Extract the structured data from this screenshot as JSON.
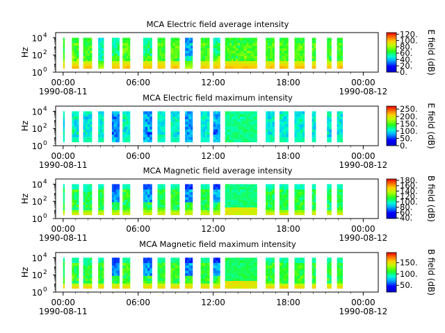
{
  "chart_data": [
    {
      "type": "heatmap",
      "title": "MCA  Electric field average intensity",
      "ylabel": "Hz",
      "y_scale": "log",
      "y_ticks": [
        {
          "base": "10",
          "exp": "0"
        },
        {
          "base": "10",
          "exp": "2"
        },
        {
          "base": "10",
          "exp": "4"
        }
      ],
      "x_ticks": [
        "00:00",
        "06:00",
        "12:00",
        "18:00",
        "00:00"
      ],
      "x_dates": [
        "1990-08-11",
        "1990-08-12"
      ],
      "colorbar_label": "E field (dB)",
      "colorbar_ticks": [
        "0.",
        "20.",
        "40.",
        "60.",
        "80.",
        "100.",
        "120."
      ],
      "colorbar_range": [
        0,
        125
      ],
      "profile": "e_avg"
    },
    {
      "type": "heatmap",
      "title": "MCA  Electric field maximum intensity",
      "ylabel": "Hz",
      "y_scale": "log",
      "y_ticks": [
        {
          "base": "10",
          "exp": "0"
        },
        {
          "base": "10",
          "exp": "2"
        },
        {
          "base": "10",
          "exp": "4"
        }
      ],
      "x_ticks": [
        "00:00",
        "06:00",
        "12:00",
        "18:00",
        "00:00"
      ],
      "x_dates": [
        "1990-08-11",
        "1990-08-12"
      ],
      "colorbar_label": "E field (dB)",
      "colorbar_ticks": [
        "0.",
        "50.",
        "100.",
        "150.",
        "200.",
        "250."
      ],
      "colorbar_range": [
        0,
        270
      ],
      "profile": "e_max"
    },
    {
      "type": "heatmap",
      "title": "MCA  Magnetic field average intensity",
      "ylabel": "Hz",
      "y_scale": "log",
      "y_ticks": [
        {
          "base": "10",
          "exp": "0"
        },
        {
          "base": "10",
          "exp": "2"
        },
        {
          "base": "10",
          "exp": "4"
        }
      ],
      "x_ticks": [
        "00:00",
        "06:00",
        "12:00",
        "18:00",
        "00:00"
      ],
      "x_dates": [
        "1990-08-11",
        "1990-08-12"
      ],
      "colorbar_label": "B field (dB)",
      "colorbar_ticks": [
        "40.",
        "60.",
        "80.",
        "100.",
        "120.",
        "140.",
        "160.",
        "180."
      ],
      "colorbar_range": [
        38,
        185
      ],
      "profile": "b_avg"
    },
    {
      "type": "heatmap",
      "title": "MCA  Magnetic field maximum intensity",
      "ylabel": "Hz",
      "y_scale": "log",
      "y_ticks": [
        {
          "base": "10",
          "exp": "0"
        },
        {
          "base": "10",
          "exp": "2"
        },
        {
          "base": "10",
          "exp": "4"
        }
      ],
      "x_ticks": [
        "00:00",
        "06:00",
        "12:00",
        "18:00",
        "00:00"
      ],
      "x_dates": [
        "1990-08-11",
        "1990-08-12"
      ],
      "colorbar_label": "B field (dB)",
      "colorbar_ticks": [
        "50.",
        "100.",
        "150."
      ],
      "colorbar_range": [
        20,
        195
      ],
      "profile": "b_max"
    }
  ],
  "x_range_hours": [
    -0.6,
    25.2
  ],
  "y_range_log10": [
    0,
    4.6
  ],
  "data_blocks_hours": [
    [
      0.0,
      0.1
    ],
    [
      0.7,
      1.25
    ],
    [
      1.6,
      2.3
    ],
    [
      2.8,
      3.25
    ],
    [
      3.9,
      4.5
    ],
    [
      4.75,
      5.35
    ],
    [
      6.4,
      7.1
    ],
    [
      7.55,
      8.15
    ],
    [
      8.6,
      9.3
    ],
    [
      9.75,
      10.35
    ],
    [
      11.0,
      11.7
    ],
    [
      12.0,
      12.55
    ],
    [
      12.95,
      15.5
    ],
    [
      16.2,
      16.9
    ],
    [
      17.3,
      18.0
    ],
    [
      18.5,
      19.3
    ],
    [
      19.9,
      20.2
    ],
    [
      21.1,
      21.45
    ],
    [
      21.9,
      22.35
    ]
  ]
}
